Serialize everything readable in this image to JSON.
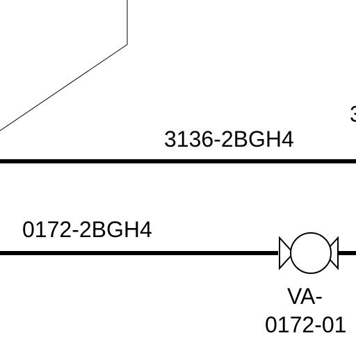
{
  "lines": [
    {
      "label": "3136-2BGH4"
    },
    {
      "label": "0172-2BGH4"
    }
  ],
  "edge_fragment": "3",
  "valve": {
    "tag_line1": "VA-",
    "tag_line2": "0172-01"
  }
}
